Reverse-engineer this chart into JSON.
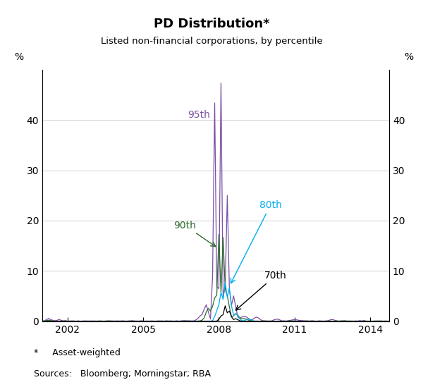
{
  "title": "PD Distribution*",
  "subtitle": "Listed non-financial corporations, by percentile",
  "ylabel_left": "%",
  "ylabel_right": "%",
  "footnote1": "*     Asset-weighted",
  "footnote2": "Sources:   Bloomberg; Morningstar; RBA",
  "ylim": [
    0,
    50
  ],
  "yticks": [
    0,
    10,
    20,
    30,
    40
  ],
  "xmin": 2001.0,
  "xmax": 2014.75,
  "xticks": [
    2002,
    2005,
    2008,
    2011,
    2014
  ],
  "colors": {
    "p95": "#7B4FA6",
    "p90": "#2D6B2D",
    "p80": "#00ADEF",
    "p70": "#000000"
  },
  "background": "#ffffff",
  "grid_color": "#c8c8c8"
}
